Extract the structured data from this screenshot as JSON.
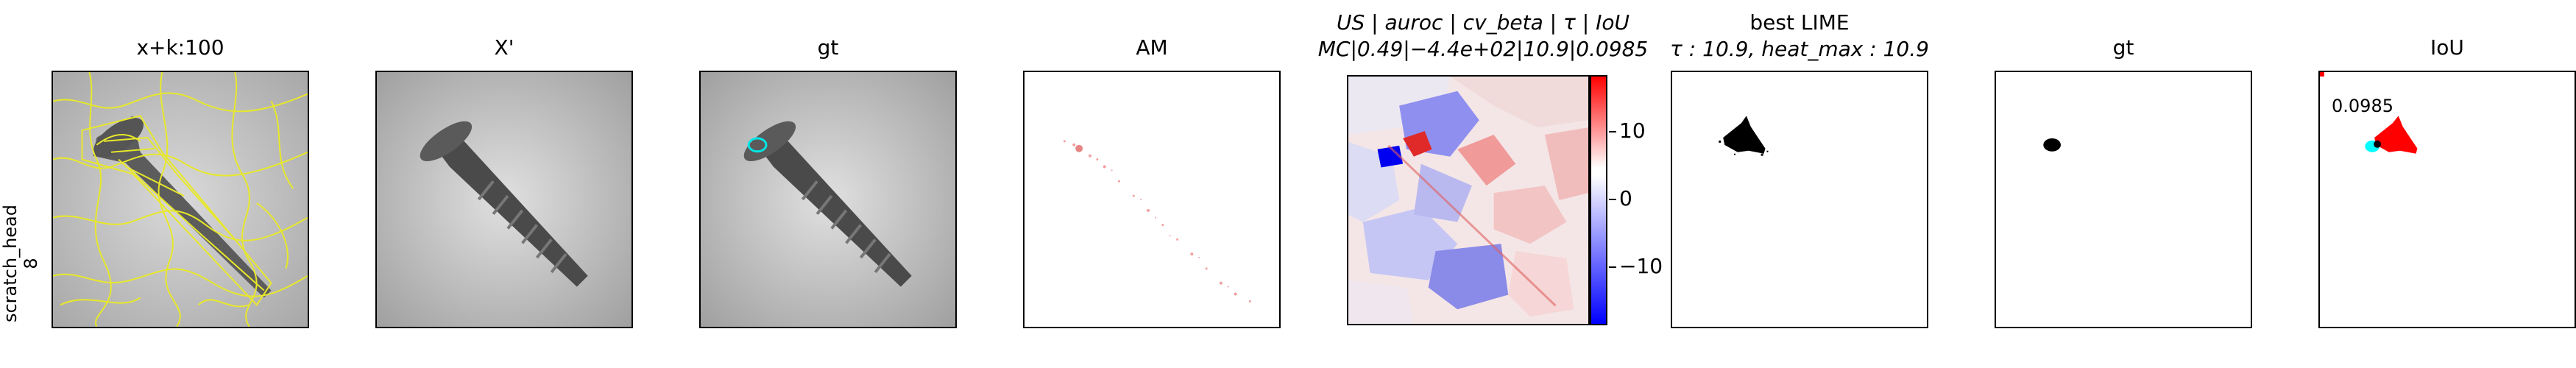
{
  "row_label": {
    "line1": "scratch_head",
    "line2": "8"
  },
  "panels": [
    {
      "title": "x+k:100"
    },
    {
      "title": "X'"
    },
    {
      "title": "gt"
    },
    {
      "title": "AM"
    },
    {
      "title_line1": "US | auroc | cv_beta | τ | IoU",
      "title_line2": "MC|0.49|−4.4e+02|10.9|0.0985"
    },
    {
      "title_line1": "best LIME",
      "title_line2": "τ : 10.9, heat_max : 10.9"
    },
    {
      "title": "gt"
    },
    {
      "title": "IoU"
    }
  ],
  "colorbar": {
    "ticks": [
      "10",
      "0",
      "−10"
    ],
    "colormap": [
      "#ff0000",
      "#ffffff",
      "#0000ff"
    ]
  },
  "iou_value": "0.0985",
  "colors": {
    "segment_lines": "#e8e82a",
    "gt_contour": "#00e5e5",
    "overlap_cyan": "#00ffff",
    "heat_red": "#ff0000"
  }
}
